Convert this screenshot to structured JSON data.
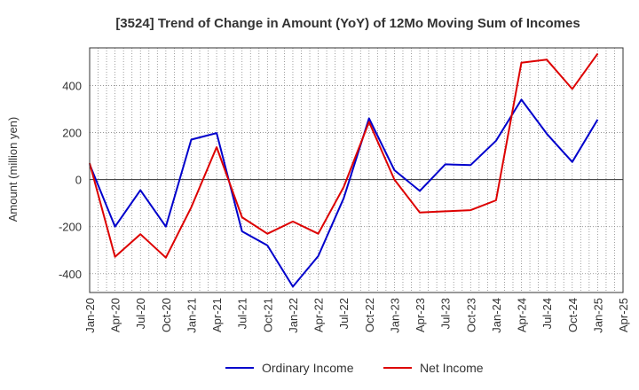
{
  "chart_data": {
    "type": "line",
    "title": "[3524]  Trend of Change in Amount (YoY) of 12Mo Moving Sum of Incomes",
    "ylabel": "Amount (million yen)",
    "xlabel": "",
    "ylim": [
      -480,
      560
    ],
    "yticks": [
      -400,
      -200,
      0,
      200,
      400
    ],
    "ytick_labels": [
      "-400",
      "-200",
      "0",
      "200",
      "400"
    ],
    "xtick_labels": [
      "Jan-20",
      "Apr-20",
      "Jul-20",
      "Oct-20",
      "Jan-21",
      "Apr-21",
      "Jul-21",
      "Oct-21",
      "Jan-22",
      "Apr-22",
      "Jul-22",
      "Oct-22",
      "Jan-23",
      "Apr-23",
      "Jul-23",
      "Oct-23",
      "Jan-24",
      "Apr-24",
      "Jul-24",
      "Oct-24",
      "Jan-25",
      "Apr-25"
    ],
    "x": [
      "Jan-20",
      "Apr-20",
      "Jul-20",
      "Oct-20",
      "Jan-21",
      "Apr-21",
      "Jul-21",
      "Oct-21",
      "Jan-22",
      "Apr-22",
      "Jul-22",
      "Oct-22",
      "Jan-23",
      "Apr-23",
      "Jul-23",
      "Oct-23",
      "Jan-24",
      "Apr-24",
      "Jul-24",
      "Oct-24",
      "Jan-25"
    ],
    "grid": true,
    "legend_position": "bottom",
    "series": [
      {
        "name": "Ordinary Income",
        "color": "#0000cc",
        "values": [
          65,
          -200,
          -45,
          -200,
          170,
          198,
          -220,
          -280,
          -455,
          -325,
          -80,
          260,
          40,
          -48,
          65,
          62,
          165,
          340,
          195,
          75,
          255
        ]
      },
      {
        "name": "Net Income",
        "color": "#dd0000",
        "values": [
          70,
          -328,
          -232,
          -332,
          -118,
          138,
          -160,
          -230,
          -178,
          -230,
          -32,
          245,
          0,
          -140,
          -135,
          -130,
          -88,
          497,
          510,
          385,
          535
        ]
      }
    ]
  }
}
